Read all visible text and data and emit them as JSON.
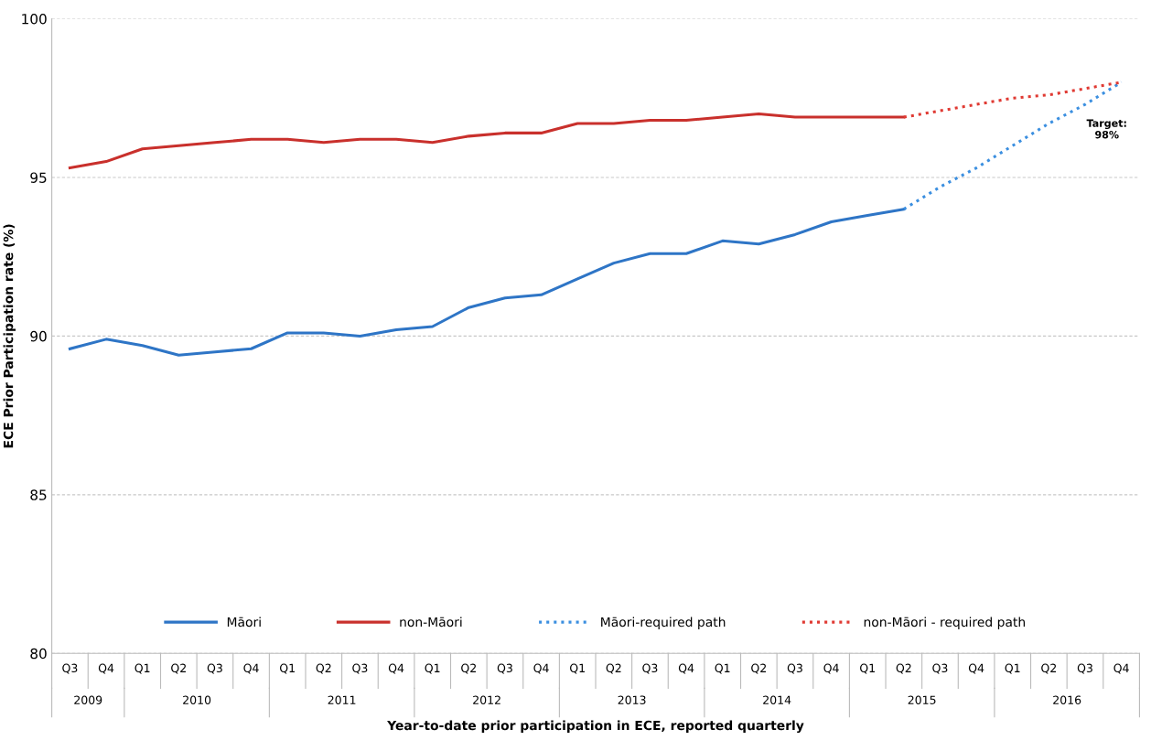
{
  "chart_data": {
    "type": "line",
    "ylabel": "ECE Prior Participation rate (%)",
    "xlabel": "Year-to-date prior participation in ECE, reported quarterly",
    "categories": [
      "Q3",
      "Q4",
      "Q1",
      "Q2",
      "Q3",
      "Q4",
      "Q1",
      "Q2",
      "Q3",
      "Q4",
      "Q1",
      "Q2",
      "Q3",
      "Q4",
      "Q1",
      "Q2",
      "Q3",
      "Q4",
      "Q1",
      "Q2",
      "Q3",
      "Q4",
      "Q1",
      "Q2",
      "Q3",
      "Q4",
      "Q1",
      "Q2",
      "Q3",
      "Q4"
    ],
    "ylim": [
      80,
      100
    ],
    "yticks": [
      80,
      85,
      90,
      95,
      100
    ],
    "grid": "y",
    "legend": "bottom",
    "marker": "none",
    "series": [
      {
        "name": "Māori",
        "color": "#2e75c6",
        "line_style": "solid",
        "values": [
          89.6,
          89.9,
          89.7,
          89.4,
          89.5,
          89.6,
          90.1,
          90.1,
          90.0,
          90.2,
          90.3,
          90.9,
          91.2,
          91.3,
          91.8,
          92.3,
          92.6,
          92.6,
          93.0,
          92.9,
          93.2,
          93.6,
          93.8,
          94.0,
          null,
          null,
          null,
          null,
          null,
          null
        ]
      },
      {
        "name": "non-Māori",
        "color": "#c9302c",
        "line_style": "solid",
        "values": [
          95.3,
          95.5,
          95.9,
          96.0,
          96.1,
          96.2,
          96.2,
          96.1,
          96.2,
          96.2,
          96.1,
          96.3,
          96.4,
          96.4,
          96.7,
          96.7,
          96.8,
          96.8,
          96.9,
          97.0,
          96.9,
          96.9,
          96.9,
          96.9,
          null,
          null,
          null,
          null,
          null,
          null
        ]
      },
      {
        "name": "Māori-required path",
        "color": "#3b8fe0",
        "line_style": "dotted",
        "values": [
          null,
          null,
          null,
          null,
          null,
          null,
          null,
          null,
          null,
          null,
          null,
          null,
          null,
          null,
          null,
          null,
          null,
          null,
          null,
          null,
          null,
          null,
          null,
          94.0,
          94.7,
          95.3,
          96.0,
          96.7,
          97.3,
          98.0
        ]
      },
      {
        "name": "non-Māori - required path",
        "color": "#e03a33",
        "line_style": "dotted",
        "values": [
          null,
          null,
          null,
          null,
          null,
          null,
          null,
          null,
          null,
          null,
          null,
          null,
          null,
          null,
          null,
          null,
          null,
          null,
          null,
          null,
          null,
          null,
          null,
          96.9,
          97.1,
          97.3,
          97.5,
          97.6,
          97.8,
          98.0
        ]
      }
    ],
    "annotations": [
      "Target:\n98%",
      "2009",
      "2010",
      "2011",
      "2012",
      "2013",
      "2014",
      "2015",
      "2016"
    ]
  }
}
